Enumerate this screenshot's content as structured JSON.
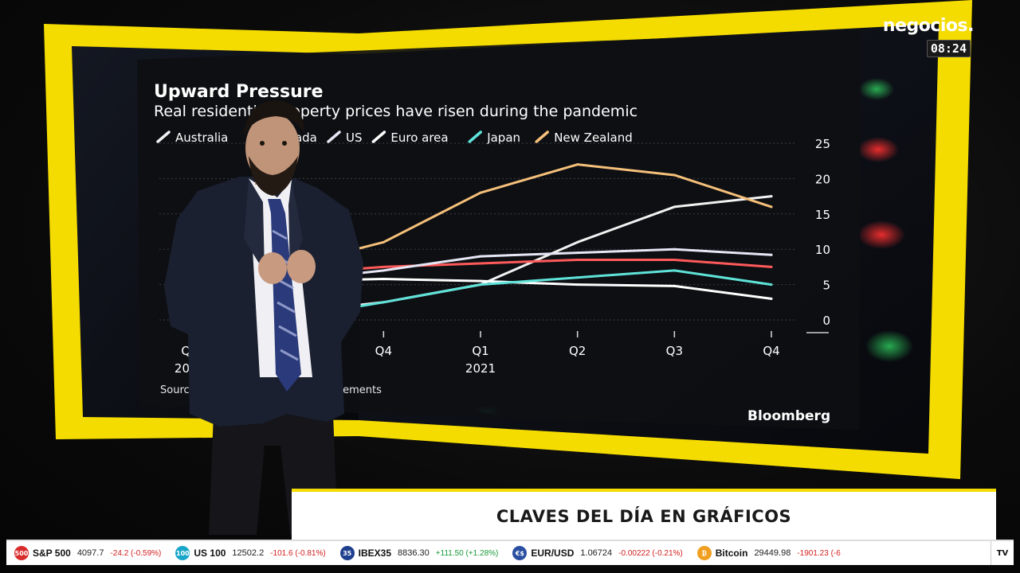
{
  "channel": {
    "name": "negocios.",
    "clock": "08:24"
  },
  "lower_third": {
    "text": "CLAVES DEL DÍA EN GRÁFICOS"
  },
  "chart_data": {
    "type": "line",
    "title": "Upward Pressure",
    "subtitle": "Real residential property prices have risen during the pandemic",
    "x": [
      "Q2 2020",
      "Q3",
      "Q4",
      "Q1 2021",
      "Q2",
      "Q3",
      "Q4"
    ],
    "x_tick_labels": [
      {
        "line1": "Q2",
        "line2": "2020"
      },
      {
        "line1": "Q3",
        "line2": ""
      },
      {
        "line1": "Q4",
        "line2": ""
      },
      {
        "line1": "Q1",
        "line2": "2021"
      },
      {
        "line1": "Q2",
        "line2": ""
      },
      {
        "line1": "Q3",
        "line2": ""
      },
      {
        "line1": "Q4",
        "line2": ""
      }
    ],
    "y_ticks": [
      0,
      5,
      10,
      15,
      20,
      25
    ],
    "ylim": [
      0,
      25
    ],
    "y_axis_position": "right",
    "legend_position": "top",
    "series": [
      {
        "name": "Australia",
        "color": "#f2f2f2",
        "values": [
          0,
          1,
          2.5,
          5,
          11,
          16,
          17.5
        ]
      },
      {
        "name": "Canada",
        "color": "#ff5a5a",
        "values": [
          6,
          6.5,
          7.5,
          8,
          8.5,
          8.5,
          7.5
        ]
      },
      {
        "name": "US",
        "color": "#e6e6f5",
        "values": [
          5,
          5.5,
          7,
          9,
          9.5,
          10,
          9.2
        ]
      },
      {
        "name": "Euro area",
        "color": "#ffffff",
        "values": [
          4,
          5.5,
          5.8,
          5.5,
          5,
          4.8,
          3
        ]
      },
      {
        "name": "Japan",
        "color": "#5fe3d9",
        "values": [
          1,
          0.2,
          2.5,
          5,
          6,
          7,
          5
        ]
      },
      {
        "name": "New Zealand",
        "color": "#f5c07a",
        "values": [
          6,
          7.5,
          11,
          18,
          22,
          20.5,
          16
        ]
      }
    ],
    "source": "Source: Bank for International Settlements",
    "brand": "Bloomberg"
  },
  "ticker": {
    "items": [
      {
        "icon": "500",
        "icon_color": "#d92c2c",
        "name": "S&P 500",
        "value": "4097.7",
        "change": "-24.2 (-0.59%)",
        "direction": "down"
      },
      {
        "icon": "100",
        "icon_color": "#18a6c9",
        "name": "US 100",
        "value": "12502.2",
        "change": "-101.6 (-0.81%)",
        "direction": "down"
      },
      {
        "icon": "35",
        "icon_color": "#1f3f8f",
        "name": "IBEX35",
        "value": "8836.30",
        "change": "+111.50 (+1.28%)",
        "direction": "up"
      },
      {
        "icon": "€$",
        "icon_color": "#2a4fa0",
        "name": "EUR/USD",
        "value": "1.06724",
        "change": "-0.00222 (-0.21%)",
        "direction": "down"
      },
      {
        "icon": "₿",
        "icon_color": "#f0a020",
        "name": "Bitcoin",
        "value": "29449.98",
        "change": "-1901.23 (-6",
        "direction": "down"
      }
    ],
    "end_label": "TV"
  }
}
